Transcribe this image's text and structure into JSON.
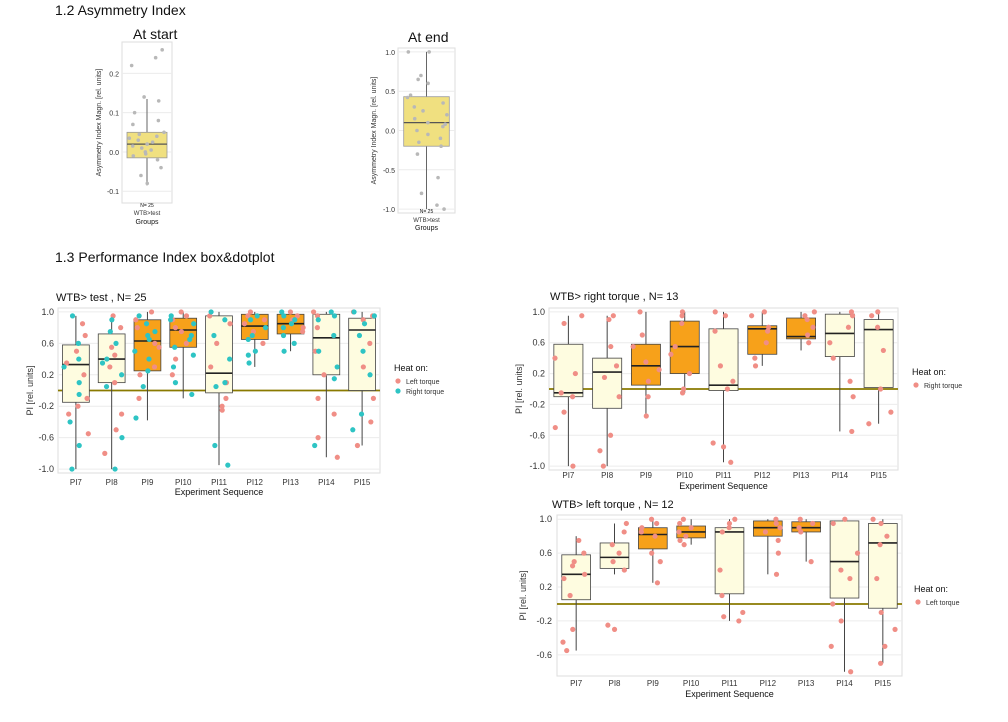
{
  "headings": {
    "asym": "1.2 Asymmetry Index",
    "perf": "1.3 Performance Index box&dotplot"
  },
  "colors": {
    "left_torque": "#F08E86",
    "right_torque": "#2EC4C4",
    "box_high": "#F7A11A",
    "box_low": "#FEFCE0",
    "asym_box": "#F0E080",
    "refline": "#8A7A00"
  },
  "chart_data": [
    {
      "id": "asym_start",
      "type": "box",
      "title": "At start",
      "xlabel": "Groups",
      "ylabel": "Asymmetry Index Magn. [rel. units]",
      "category": "WTB>test",
      "n_label": "N= 25",
      "ylim": [
        -0.13,
        0.28
      ],
      "yticks": [
        -0.1,
        0.0,
        0.1,
        0.2
      ],
      "ytick_labels": [
        "-0.1",
        "0.0",
        "0.1",
        "0.2"
      ],
      "box": {
        "q1": -0.015,
        "median": 0.02,
        "q3": 0.05,
        "lo": -0.085,
        "hi": 0.135
      },
      "points": [
        0.26,
        0.24,
        0.22,
        0.14,
        0.13,
        0.1,
        0.08,
        0.07,
        0.05,
        0.045,
        0.04,
        0.035,
        0.03,
        0.025,
        0.02,
        0.015,
        0.01,
        0.005,
        0.0,
        -0.005,
        -0.01,
        -0.02,
        -0.04,
        -0.06,
        -0.08
      ]
    },
    {
      "id": "asym_end",
      "type": "box",
      "title": "At end",
      "xlabel": "Groups",
      "ylabel": "Asymmetry Index Magn. [rel. units]",
      "category": "WTB>test",
      "n_label": "N= 25",
      "ylim": [
        -1.05,
        1.05
      ],
      "yticks": [
        -1.0,
        -0.5,
        0.0,
        0.5,
        1.0
      ],
      "ytick_labels": [
        "-1.0",
        "-0.5",
        "0.0",
        "0.5",
        "1.0"
      ],
      "box": {
        "q1": -0.2,
        "median": 0.1,
        "q3": 0.43,
        "lo": -1.0,
        "hi": 1.0
      },
      "points": [
        1.0,
        1.0,
        0.7,
        0.65,
        0.6,
        0.45,
        0.42,
        0.35,
        0.3,
        0.25,
        0.2,
        0.15,
        0.1,
        0.08,
        0.05,
        0.0,
        -0.05,
        -0.1,
        -0.15,
        -0.2,
        -0.3,
        -0.6,
        -0.8,
        -0.95,
        -1.0
      ]
    },
    {
      "id": "pi_test",
      "type": "box",
      "title": "WTB> test , N= 25",
      "xlabel": "Experiment Sequence",
      "ylabel": "PI [rel. units]",
      "categories": [
        "PI7",
        "PI8",
        "PI9",
        "PI10",
        "PI11",
        "PI12",
        "PI13",
        "PI14",
        "PI15"
      ],
      "ylim": [
        -1.05,
        1.05
      ],
      "yticks": [
        -1.0,
        -0.6,
        -0.2,
        0.2,
        0.6,
        1.0
      ],
      "ytick_labels": [
        "-1.0",
        "-0.6",
        "-0.2",
        "0.2",
        "0.6",
        "1.0"
      ],
      "refline": 0.0,
      "legend_title": "Heat on:",
      "legend": [
        {
          "name": "Left torque",
          "color": "#F08E86"
        },
        {
          "name": "Right torque",
          "color": "#2EC4C4"
        }
      ],
      "boxes": [
        {
          "q1": -0.15,
          "median": 0.33,
          "q3": 0.58,
          "lo": -1.0,
          "hi": 0.95,
          "fill": "low"
        },
        {
          "q1": 0.1,
          "median": 0.4,
          "q3": 0.72,
          "lo": -1.0,
          "hi": 0.95,
          "fill": "low"
        },
        {
          "q1": 0.25,
          "median": 0.63,
          "q3": 0.9,
          "lo": -0.38,
          "hi": 1.0,
          "fill": "high"
        },
        {
          "q1": 0.55,
          "median": 0.77,
          "q3": 0.92,
          "lo": -0.1,
          "hi": 1.0,
          "fill": "high"
        },
        {
          "q1": -0.03,
          "median": 0.22,
          "q3": 0.95,
          "lo": -0.95,
          "hi": 1.0,
          "fill": "low"
        },
        {
          "q1": 0.65,
          "median": 0.82,
          "q3": 0.97,
          "lo": 0.3,
          "hi": 1.0,
          "fill": "high"
        },
        {
          "q1": 0.72,
          "median": 0.85,
          "q3": 0.97,
          "lo": 0.5,
          "hi": 1.0,
          "fill": "high"
        },
        {
          "q1": 0.2,
          "median": 0.67,
          "q3": 0.97,
          "lo": -0.85,
          "hi": 1.0,
          "fill": "low"
        },
        {
          "q1": 0.0,
          "median": 0.77,
          "q3": 0.92,
          "lo": -0.7,
          "hi": 1.0,
          "fill": "low"
        }
      ],
      "points": [
        {
          "left": [
            0.85,
            0.7,
            0.5,
            0.35,
            0.2,
            -0.1,
            -0.2,
            -0.3,
            -0.55
          ],
          "right": [
            0.95,
            0.6,
            0.4,
            0.3,
            0.1,
            -0.05,
            -0.4,
            -0.7,
            -1.0
          ]
        },
        {
          "left": [
            0.95,
            0.8,
            0.55,
            0.45,
            0.3,
            0.1,
            -0.3,
            -0.5,
            -0.8
          ],
          "right": [
            0.9,
            0.75,
            0.6,
            0.4,
            0.35,
            0.2,
            0.05,
            -0.6,
            -1.0
          ]
        },
        {
          "left": [
            1.0,
            0.9,
            0.8,
            0.6,
            0.55,
            0.3,
            0.2,
            -0.1
          ],
          "right": [
            0.95,
            0.85,
            0.75,
            0.7,
            0.65,
            0.5,
            0.4,
            0.25,
            0.05,
            -0.35
          ]
        },
        {
          "left": [
            1.0,
            0.95,
            0.9,
            0.8,
            0.75,
            0.6,
            0.4,
            0.2
          ],
          "right": [
            0.95,
            0.9,
            0.85,
            0.7,
            0.65,
            0.55,
            0.45,
            0.3,
            0.1,
            -0.05
          ]
        },
        {
          "left": [
            0.95,
            0.85,
            0.6,
            0.3,
            0.1,
            -0.1,
            -0.2,
            -0.25
          ],
          "right": [
            1.0,
            0.9,
            0.7,
            0.4,
            0.1,
            0.05,
            -0.7,
            -0.95
          ]
        },
        {
          "left": [
            1.0,
            0.95,
            0.9,
            0.85,
            0.75,
            0.6
          ],
          "right": [
            0.95,
            0.9,
            0.8,
            0.7,
            0.65,
            0.5,
            0.45,
            0.35
          ]
        },
        {
          "left": [
            1.0,
            0.95,
            0.9,
            0.8,
            0.75
          ],
          "right": [
            1.0,
            0.95,
            0.9,
            0.85,
            0.8,
            0.7,
            0.6,
            0.5
          ]
        },
        {
          "left": [
            1.0,
            0.95,
            0.8,
            0.5,
            0.2,
            -0.1,
            -0.3,
            -0.6,
            -0.85
          ],
          "right": [
            1.0,
            0.95,
            0.9,
            0.7,
            0.5,
            0.3,
            0.15,
            -0.7
          ]
        },
        {
          "left": [
            1.0,
            0.95,
            0.9,
            0.6,
            0.3,
            -0.1,
            -0.4,
            -0.7
          ],
          "right": [
            1.0,
            0.95,
            0.85,
            0.7,
            0.5,
            0.2,
            -0.3,
            -0.5
          ]
        }
      ]
    },
    {
      "id": "pi_right",
      "type": "box",
      "title": "WTB> right torque , N= 13",
      "xlabel": "Experiment Sequence",
      "ylabel": "PI [rel. units]",
      "categories": [
        "PI7",
        "PI8",
        "PI9",
        "PI10",
        "PI11",
        "PI12",
        "PI13",
        "PI14",
        "PI15"
      ],
      "ylim": [
        -1.05,
        1.05
      ],
      "yticks": [
        -1.0,
        -0.6,
        -0.2,
        0.2,
        0.6,
        1.0
      ],
      "ytick_labels": [
        "-1.0",
        "-0.6",
        "-0.2",
        "0.2",
        "0.6",
        "1.0"
      ],
      "refline": 0.0,
      "legend_title": "Heat on:",
      "legend": [
        {
          "name": "Right torque",
          "color": "#F08E86"
        }
      ],
      "boxes": [
        {
          "q1": -0.1,
          "median": -0.05,
          "q3": 0.58,
          "lo": -1.0,
          "hi": 0.95,
          "fill": "low"
        },
        {
          "q1": -0.25,
          "median": 0.22,
          "q3": 0.4,
          "lo": -1.0,
          "hi": 0.95,
          "fill": "low"
        },
        {
          "q1": 0.05,
          "median": 0.3,
          "q3": 0.58,
          "lo": -0.38,
          "hi": 1.0,
          "fill": "high"
        },
        {
          "q1": 0.2,
          "median": 0.55,
          "q3": 0.88,
          "lo": -0.05,
          "hi": 1.0,
          "fill": "high"
        },
        {
          "q1": -0.02,
          "median": 0.05,
          "q3": 0.78,
          "lo": -0.95,
          "hi": 1.0,
          "fill": "low"
        },
        {
          "q1": 0.45,
          "median": 0.78,
          "q3": 0.82,
          "lo": 0.3,
          "hi": 1.0,
          "fill": "high"
        },
        {
          "q1": 0.65,
          "median": 0.68,
          "q3": 0.92,
          "lo": 0.5,
          "hi": 1.0,
          "fill": "high"
        },
        {
          "q1": 0.42,
          "median": 0.72,
          "q3": 0.97,
          "lo": -0.55,
          "hi": 1.0,
          "fill": "low"
        },
        {
          "q1": 0.02,
          "median": 0.77,
          "q3": 0.9,
          "lo": -0.45,
          "hi": 1.0,
          "fill": "low"
        }
      ],
      "points": [
        {
          "left": [
            0.95,
            0.85,
            0.4,
            0.2,
            -0.05,
            -0.1,
            -0.3,
            -0.5,
            -1.0
          ]
        },
        {
          "left": [
            0.95,
            0.9,
            0.55,
            0.3,
            0.15,
            -0.1,
            -0.6,
            -0.8,
            -1.0
          ]
        },
        {
          "left": [
            1.0,
            0.7,
            0.55,
            0.35,
            0.25,
            0.1,
            -0.1,
            -0.35
          ]
        },
        {
          "left": [
            1.0,
            0.95,
            0.85,
            0.55,
            0.45,
            0.2,
            0.0,
            -0.05
          ]
        },
        {
          "left": [
            1.0,
            0.95,
            0.75,
            0.3,
            0.1,
            0.0,
            -0.7,
            -0.75,
            -0.95
          ]
        },
        {
          "left": [
            1.0,
            0.95,
            0.8,
            0.75,
            0.6,
            0.4,
            0.3
          ]
        },
        {
          "left": [
            1.0,
            0.95,
            0.9,
            0.8,
            0.7,
            0.6
          ]
        },
        {
          "left": [
            1.0,
            0.95,
            0.8,
            0.6,
            0.4,
            0.1,
            -0.1,
            -0.55
          ]
        },
        {
          "left": [
            1.0,
            0.95,
            0.8,
            0.5,
            0.0,
            -0.3,
            -0.45
          ]
        }
      ]
    },
    {
      "id": "pi_left",
      "type": "box",
      "title": "WTB> left torque , N= 12",
      "xlabel": "Experiment Sequence",
      "ylabel": "PI [rel. units]",
      "categories": [
        "PI7",
        "PI8",
        "PI9",
        "PI10",
        "PI11",
        "PI12",
        "PI13",
        "PI14",
        "PI15"
      ],
      "ylim": [
        -0.85,
        1.05
      ],
      "yticks": [
        -0.6,
        -0.2,
        0.2,
        0.6,
        1.0
      ],
      "ytick_labels": [
        "-0.6",
        "-0.2",
        "0.2",
        "0.6",
        "1.0"
      ],
      "refline": 0.0,
      "legend_title": "Heat on:",
      "legend": [
        {
          "name": "Left torque",
          "color": "#F08E86"
        }
      ],
      "boxes": [
        {
          "q1": 0.05,
          "median": 0.35,
          "q3": 0.58,
          "lo": -0.55,
          "hi": 0.8,
          "fill": "low"
        },
        {
          "q1": 0.42,
          "median": 0.55,
          "q3": 0.72,
          "lo": 0.35,
          "hi": 0.95,
          "fill": "low"
        },
        {
          "q1": 0.65,
          "median": 0.82,
          "q3": 0.9,
          "lo": 0.25,
          "hi": 1.0,
          "fill": "high"
        },
        {
          "q1": 0.78,
          "median": 0.85,
          "q3": 0.92,
          "lo": 0.7,
          "hi": 1.0,
          "fill": "high"
        },
        {
          "q1": 0.12,
          "median": 0.85,
          "q3": 0.9,
          "lo": -0.2,
          "hi": 1.0,
          "fill": "low"
        },
        {
          "q1": 0.8,
          "median": 0.9,
          "q3": 0.98,
          "lo": 0.35,
          "hi": 1.0,
          "fill": "high"
        },
        {
          "q1": 0.85,
          "median": 0.9,
          "q3": 0.97,
          "lo": 0.5,
          "hi": 1.0,
          "fill": "high"
        },
        {
          "q1": 0.07,
          "median": 0.5,
          "q3": 0.98,
          "lo": -0.8,
          "hi": 1.0,
          "fill": "low"
        },
        {
          "q1": -0.05,
          "median": 0.72,
          "q3": 0.95,
          "lo": -0.7,
          "hi": 1.0,
          "fill": "low"
        }
      ],
      "points": [
        {
          "left": [
            0.75,
            0.6,
            0.5,
            0.45,
            0.35,
            0.3,
            0.1,
            -0.3,
            -0.45,
            -0.55
          ]
        },
        {
          "left": [
            0.95,
            0.85,
            0.7,
            0.6,
            0.5,
            0.4,
            -0.25,
            -0.3
          ]
        },
        {
          "left": [
            1.0,
            0.95,
            0.9,
            0.85,
            0.8,
            0.6,
            0.5,
            0.25
          ]
        },
        {
          "left": [
            1.0,
            0.95,
            0.9,
            0.85,
            0.8,
            0.75,
            0.7
          ]
        },
        {
          "left": [
            1.0,
            0.95,
            0.9,
            0.85,
            0.4,
            0.1,
            -0.1,
            -0.15,
            -0.2
          ]
        },
        {
          "left": [
            1.0,
            0.95,
            0.9,
            0.85,
            0.75,
            0.6,
            0.35
          ]
        },
        {
          "left": [
            1.0,
            0.95,
            0.9,
            0.85,
            0.5
          ]
        },
        {
          "left": [
            1.0,
            0.95,
            0.6,
            0.4,
            0.3,
            0.0,
            -0.2,
            -0.5,
            -0.8
          ]
        },
        {
          "left": [
            1.0,
            0.95,
            0.8,
            0.7,
            0.3,
            -0.1,
            -0.3,
            -0.5,
            -0.7
          ]
        }
      ]
    }
  ]
}
